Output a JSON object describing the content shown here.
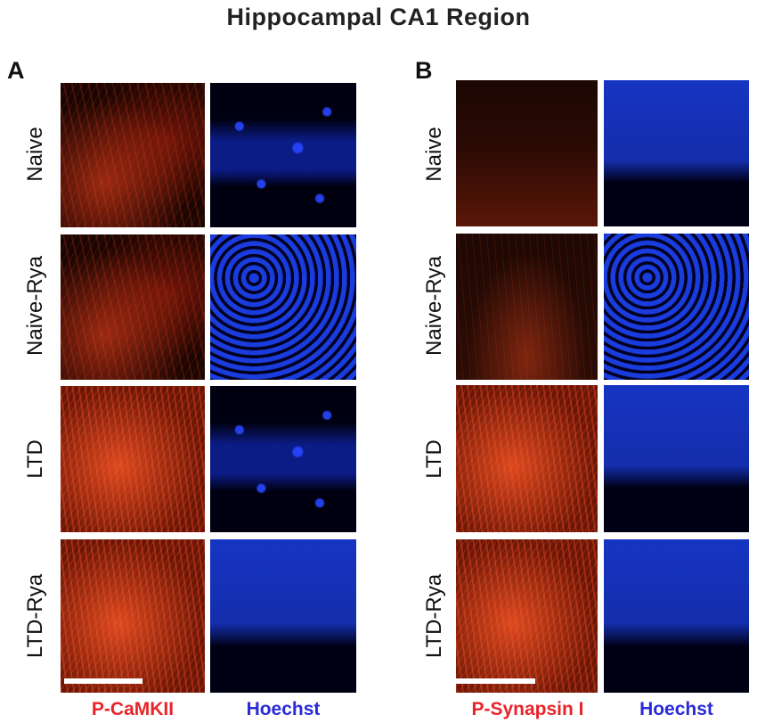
{
  "figure_title": "Hippocampal  CA1 Region",
  "panels": [
    {
      "letter": "A",
      "rows": [
        "Naive",
        "Naive-Rya",
        "LTD",
        "LTD-Rya"
      ],
      "stain_label": "P-CaMKII",
      "nuclear_label": "Hoechst"
    },
    {
      "letter": "B",
      "rows": [
        "Naive",
        "Naive-Rya",
        "LTD",
        "LTD-Rya"
      ],
      "stain_label": "P-Synapsin I",
      "nuclear_label": "Hoechst"
    }
  ],
  "colors": {
    "stain_label": "#e8242a",
    "nuclear_label": "#2a2ad8"
  }
}
